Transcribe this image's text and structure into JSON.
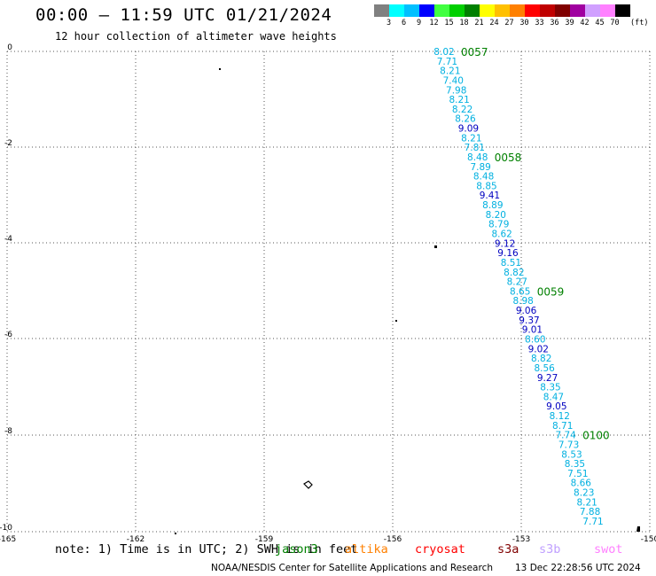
{
  "title": "00:00 – 11:59 UTC 01/21/2024",
  "subtitle": "12 hour collection of altimeter wave heights",
  "color_scale": {
    "labels": [
      "3",
      "6",
      "9",
      "12",
      "15",
      "18",
      "21",
      "24",
      "27",
      "30",
      "33",
      "36",
      "39",
      "42",
      "45",
      "70"
    ],
    "unit": "(ft)",
    "colors": [
      "#808080",
      "#00ffff",
      "#00c0ff",
      "#0000ff",
      "#40ff40",
      "#00d000",
      "#008000",
      "#ffff00",
      "#ffc000",
      "#ff8000",
      "#ff0000",
      "#c00000",
      "#800000",
      "#a000a0",
      "#d0a0ff",
      "#ff80ff",
      "#000000"
    ]
  },
  "axes": {
    "lon_labels": [
      "-165",
      "-162",
      "-159",
      "-156",
      "-153",
      "-150"
    ],
    "lat_labels": [
      "0",
      "-2",
      "-4",
      "-6",
      "-8",
      "-10"
    ]
  },
  "track": {
    "time_labels": [
      "0057",
      "0058",
      "0059",
      "0100"
    ],
    "time_label_color": "#008000",
    "swh": [
      "8.02",
      "7.71",
      "8.21",
      "7.40",
      "7.98",
      "8.21",
      "8.22",
      "8.26",
      "9.09",
      "8.21",
      "7.81",
      "8.48",
      "7.89",
      "8.48",
      "8.85",
      "9.41",
      "8.89",
      "8.20",
      "8.79",
      "8.62",
      "9.12",
      "9.16",
      "8.51",
      "8.82",
      "8.27",
      "8.65",
      "8.98",
      "9.06",
      "9.37",
      "9.01",
      "8.60",
      "9.02",
      "8.82",
      "8.56",
      "9.27",
      "8.35",
      "8.47",
      "9.05",
      "8.12",
      "8.71",
      "7.74",
      "7.73",
      "8.53",
      "8.35",
      "7.51",
      "8.66",
      "8.23",
      "8.21",
      "7.88",
      "7.71"
    ],
    "color_light": "#00b0e0",
    "color_dark": "#0000c0"
  },
  "footer": {
    "note": "note: 1) Time is in UTC; 2) SWH is in feet",
    "satellites": [
      {
        "name": "jason3",
        "color": "#008000"
      },
      {
        "name": "altika",
        "color": "#ff8000"
      },
      {
        "name": "cryosat",
        "color": "#ff0000"
      },
      {
        "name": "s3a",
        "color": "#800000"
      },
      {
        "name": "s3b",
        "color": "#c0a0ff"
      },
      {
        "name": "swot",
        "color": "#ff80ff"
      }
    ],
    "credit": "NOAA/NESDIS Center for Satellite Applications and Research",
    "generated": "13 Dec 22:28:56 UTC 2024"
  }
}
